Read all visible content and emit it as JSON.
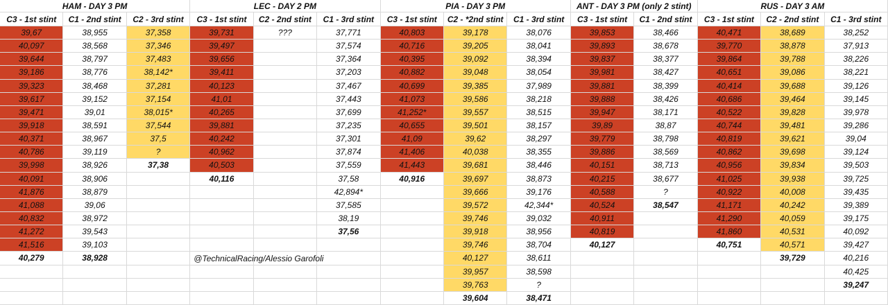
{
  "groups": [
    {
      "title": "HAM - DAY 3 PM",
      "columns": [
        {
          "header": "C3 - 1st stint",
          "color": "#cc4125",
          "laps": [
            "39,67",
            "40,097",
            "39,644",
            "39,186",
            "39,323",
            "39,617",
            "39,471",
            "39,918",
            "40,371",
            "40,786",
            "39,998",
            "40,091",
            "41,876",
            "41,088",
            "40,832",
            "41,272",
            "41,516"
          ],
          "average": "40,279"
        },
        {
          "header": "C1 - 2nd stint",
          "laps": [
            "38,955",
            "38,568",
            "38,797",
            "38,776",
            "38,468",
            "39,152",
            "39,01",
            "38,591",
            "38,967",
            "39,119",
            "38,926",
            "38,906",
            "38,879",
            "39,06",
            "38,972",
            "39,543",
            "39,103"
          ],
          "average": "38,928"
        },
        {
          "header": "C2 - 3rd stint",
          "color": "#ffd966",
          "laps": [
            "37,358",
            "37,346",
            "37,483",
            "38,142*",
            "37,281",
            "37,154",
            "38,015*",
            "37,544",
            "37,5",
            "?"
          ],
          "average": "37,38"
        }
      ]
    },
    {
      "title": "LEC - DAY 2 PM",
      "columns": [
        {
          "header": "C3 - 1st stint",
          "color": "#cc4125",
          "laps": [
            "39,731",
            "39,497",
            "39,656",
            "39,411",
            "40,123",
            "41,01",
            "40,265",
            "39,881",
            "40,242",
            "40,962",
            "40,503"
          ],
          "average": "40,116"
        },
        {
          "header": "C2 - 2nd stint",
          "laps": [
            "???"
          ]
        },
        {
          "header": "C1 - 3rd stint",
          "laps": [
            "37,771",
            "37,574",
            "37,364",
            "37,203",
            "37,467",
            "37,443",
            "37,699",
            "37,235",
            "37,301",
            "37,874",
            "37,559",
            "37,58",
            "42,894*",
            "37,585",
            "38,19"
          ],
          "average": "37,56"
        }
      ]
    },
    {
      "title": "PIA - DAY 3 PM",
      "columns": [
        {
          "header": "C3 - 1st stint",
          "color": "#cc4125",
          "laps": [
            "40,803",
            "40,716",
            "40,395",
            "40,882",
            "40,699",
            "41,073",
            "41,252*",
            "40,655",
            "41,09",
            "41,406",
            "41,443"
          ],
          "average": "40,916"
        },
        {
          "header": "C2 - *2nd stint",
          "color": "#ffd966",
          "laps": [
            "39,178",
            "39,205",
            "39,092",
            "39,048",
            "39,385",
            "39,586",
            "39,557",
            "39,501",
            "39,62",
            "40,038",
            "39,681",
            "39,697",
            "39,666",
            "39,572",
            "39,746",
            "39,918",
            "39,746",
            "40,127",
            "39,957",
            "39,763"
          ],
          "average": "39,604"
        },
        {
          "header": "C1 - 3rd stint",
          "laps": [
            "38,076",
            "38,041",
            "38,394",
            "38,054",
            "37,989",
            "38,218",
            "38,515",
            "38,157",
            "38,297",
            "38,355",
            "38,446",
            "38,873",
            "39,176",
            "42,344*",
            "39,032",
            "38,956",
            "38,704",
            "38,611",
            "38,598",
            "?"
          ],
          "average": "38,471"
        }
      ]
    },
    {
      "title": "ANT - DAY 3 PM (only 2 stint)",
      "columns": [
        {
          "header": "C3 - 1st stint",
          "color": "#cc4125",
          "laps": [
            "39,853",
            "39,893",
            "39,837",
            "39,981",
            "39,881",
            "39,888",
            "39,947",
            "39,89",
            "39,779",
            "39,886",
            "40,151",
            "40,215",
            "40,588",
            "40,524",
            "40,911",
            "40,819"
          ],
          "average": "40,127"
        },
        {
          "header": "C1 - 2nd stint",
          "laps": [
            "38,466",
            "38,678",
            "38,377",
            "38,427",
            "38,399",
            "38,426",
            "38,171",
            "38,87",
            "38,798",
            "38,569",
            "38,713",
            "38,677",
            "?"
          ],
          "average": "38,547"
        }
      ]
    },
    {
      "title": "RUS - DAY 3 AM",
      "columns": [
        {
          "header": "C3 - 1st stint",
          "color": "#cc4125",
          "laps": [
            "40,471",
            "39,770",
            "39,864",
            "40,651",
            "40,414",
            "40,686",
            "40,522",
            "40,744",
            "40,819",
            "40,862",
            "40,956",
            "41,025",
            "40,922",
            "41,171",
            "41,290",
            "41,860"
          ],
          "average": "40,751"
        },
        {
          "header": "C2 - 2nd stint",
          "color": "#ffd966",
          "laps": [
            "38,689",
            "38,878",
            "39,788",
            "39,086",
            "39,688",
            "39,464",
            "39,828",
            "39,481",
            "39,621",
            "39,698",
            "39,834",
            "39,938",
            "40,008",
            "40,242",
            "40,059",
            "40,531",
            "40,571"
          ],
          "average": "39,729"
        },
        {
          "header": "C1 - 3rd stint",
          "laps": [
            "38,252",
            "37,913",
            "38,226",
            "38,221",
            "39,126",
            "39,145",
            "39,978",
            "39,286",
            "39,04",
            "39,124",
            "39,503",
            "39,725",
            "39,435",
            "39,389",
            "39,175",
            "40,092",
            "39,427",
            "40,216",
            "40,425"
          ],
          "average": "39,247"
        }
      ]
    }
  ],
  "credit": "@TechnicalRacing/Alessio Garofoli"
}
